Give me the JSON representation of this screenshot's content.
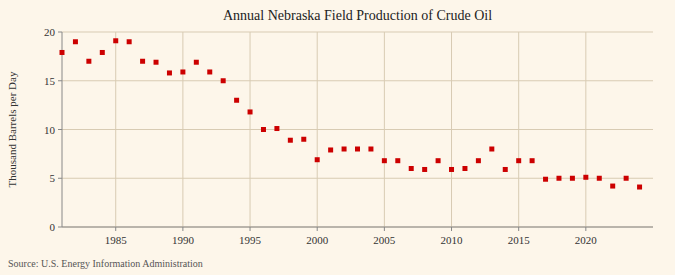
{
  "chart_data": {
    "type": "scatter",
    "title": "Annual Nebraska Field Production of Crude Oil",
    "ylabel": "Thousand Barrels per Day",
    "annotations": [
      "Source: U.S. Energy Information Administration"
    ],
    "x": [
      1981,
      1982,
      1983,
      1984,
      1985,
      1986,
      1987,
      1988,
      1989,
      1990,
      1991,
      1992,
      1993,
      1994,
      1995,
      1996,
      1997,
      1998,
      1999,
      2000,
      2001,
      2002,
      2003,
      2004,
      2005,
      2006,
      2007,
      2008,
      2009,
      2010,
      2011,
      2012,
      2013,
      2014,
      2015,
      2016,
      2017,
      2018,
      2019,
      2020,
      2021,
      2022,
      2023,
      2024
    ],
    "values": [
      17.9,
      19.0,
      17.0,
      17.9,
      19.1,
      19.0,
      17.0,
      16.9,
      15.8,
      15.9,
      16.9,
      15.9,
      15.0,
      13.0,
      11.8,
      10.0,
      10.1,
      8.9,
      9.0,
      6.9,
      7.9,
      8.0,
      8.0,
      8.0,
      6.8,
      6.8,
      6.0,
      5.9,
      6.8,
      5.9,
      6.0,
      6.8,
      8.0,
      5.9,
      6.8,
      6.8,
      4.9,
      5.0,
      5.0,
      5.1,
      5.0,
      4.2,
      5.0,
      4.1
    ],
    "color": "#cc0000",
    "marker": "square",
    "xlim": [
      1981,
      2025
    ],
    "ylim": [
      0,
      20
    ],
    "xticks": [
      1985,
      1990,
      1995,
      2000,
      2005,
      2010,
      2015,
      2020
    ],
    "yticks": [
      0,
      5,
      10,
      15,
      20
    ],
    "grid": true
  }
}
